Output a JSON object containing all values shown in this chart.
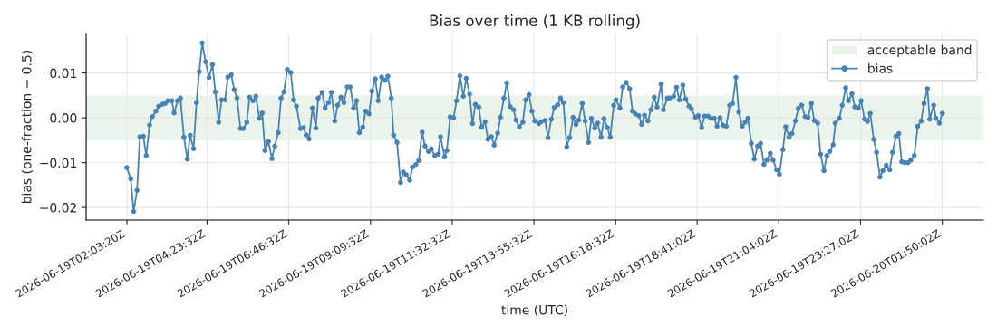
{
  "chart_data": {
    "type": "line",
    "title": "Bias over time (1 KB rolling)",
    "xlabel": "time (UTC)",
    "ylabel": "bias (one-fraction − 0.5)",
    "xlim": [
      "2026-06-19T00:52",
      "2026-06-20T03:02"
    ],
    "ylim": [
      -0.0228,
      0.0188
    ],
    "xticks": [
      {
        "value": "2026-06-19T02:03:20",
        "label": "2026-06-19T02:03:20Z"
      },
      {
        "value": "2026-06-19T04:23:32",
        "label": "2026-06-19T04:23:32Z"
      },
      {
        "value": "2026-06-19T06:46:32",
        "label": "2026-06-19T06:46:32Z"
      },
      {
        "value": "2026-06-19T09:09:32",
        "label": "2026-06-19T09:09:32Z"
      },
      {
        "value": "2026-06-19T11:32:32",
        "label": "2026-06-19T11:32:32Z"
      },
      {
        "value": "2026-06-19T13:55:32",
        "label": "2026-06-19T13:55:32Z"
      },
      {
        "value": "2026-06-19T16:18:32",
        "label": "2026-06-19T16:18:32Z"
      },
      {
        "value": "2026-06-19T18:41:02",
        "label": "2026-06-19T18:41:02Z"
      },
      {
        "value": "2026-06-19T21:04:02",
        "label": "2026-06-19T21:04:02Z"
      },
      {
        "value": "2026-06-19T23:27:02",
        "label": "2026-06-19T23:27:02Z"
      },
      {
        "value": "2026-06-20T01:50:02",
        "label": "2026-06-20T01:50:02Z"
      }
    ],
    "yticks": [
      {
        "value": -0.02,
        "label": "−0.02"
      },
      {
        "value": -0.01,
        "label": "−0.01"
      },
      {
        "value": 0.0,
        "label": "0.00"
      },
      {
        "value": 0.01,
        "label": "0.01"
      }
    ],
    "grid": true,
    "legend": "top right",
    "marker": "circle",
    "line_style": "solid",
    "bands": [
      {
        "axis": "y",
        "from": -0.005,
        "to": 0.005,
        "label": "acceptable band",
        "color": "#ebf4eb"
      }
    ],
    "series": [
      {
        "name": "bias",
        "color": "#4682b4",
        "x": [
          "2026-06-19T02:03",
          "2026-06-19T02:10",
          "2026-06-19T02:15",
          "2026-06-19T02:21",
          "2026-06-19T02:26",
          "2026-06-19T02:32",
          "2026-06-19T02:37",
          "2026-06-19T02:43",
          "2026-06-19T02:48",
          "2026-06-19T02:54",
          "2026-06-19T02:59",
          "2026-06-19T03:05",
          "2026-06-19T03:10",
          "2026-06-19T03:15",
          "2026-06-19T03:22",
          "2026-06-19T03:26",
          "2026-06-19T03:32",
          "2026-06-19T03:37",
          "2026-06-19T03:43",
          "2026-06-19T03:49",
          "2026-06-19T03:54",
          "2026-06-19T04:00",
          "2026-06-19T04:05",
          "2026-06-19T04:10",
          "2026-06-19T04:15",
          "2026-06-19T04:21",
          "2026-06-19T04:27",
          "2026-06-19T04:33",
          "2026-06-19T04:38",
          "2026-06-19T04:44",
          "2026-06-19T04:49",
          "2026-06-19T04:55",
          "2026-06-19T05:00",
          "2026-06-19T05:06",
          "2026-06-19T05:11",
          "2026-06-19T05:16",
          "2026-06-19T05:22",
          "2026-06-19T05:27",
          "2026-06-19T05:33",
          "2026-06-19T05:38",
          "2026-06-19T05:44",
          "2026-06-19T05:49",
          "2026-06-19T05:55",
          "2026-06-19T06:00",
          "2026-06-19T06:05",
          "2026-06-19T06:11",
          "2026-06-19T06:17",
          "2026-06-19T06:22",
          "2026-06-19T06:28",
          "2026-06-19T06:33",
          "2026-06-19T06:38",
          "2026-06-19T06:44",
          "2026-06-19T06:50",
          "2026-06-19T06:55",
          "2026-06-19T07:00",
          "2026-06-19T07:07",
          "2026-06-19T07:12",
          "2026-06-19T07:17",
          "2026-06-19T07:22",
          "2026-06-19T07:28",
          "2026-06-19T07:34",
          "2026-06-19T07:38",
          "2026-06-19T07:45",
          "2026-06-19T07:50",
          "2026-06-19T07:56",
          "2026-06-19T08:01",
          "2026-06-19T08:07",
          "2026-06-19T08:12",
          "2026-06-19T08:18",
          "2026-06-19T08:23",
          "2026-06-19T08:29",
          "2026-06-19T08:34",
          "2026-06-19T08:40",
          "2026-06-19T08:45",
          "2026-06-19T08:50",
          "2026-06-19T08:56",
          "2026-06-19T09:01",
          "2026-06-19T09:07",
          "2026-06-19T09:12",
          "2026-06-19T09:18",
          "2026-06-19T09:23",
          "2026-06-19T09:29",
          "2026-06-19T09:35",
          "2026-06-19T09:40",
          "2026-06-19T09:46",
          "2026-06-19T09:50",
          "2026-06-19T09:56",
          "2026-06-19T10:02",
          "2026-06-19T10:07",
          "2026-06-19T10:12",
          "2026-06-19T10:18",
          "2026-06-19T10:23",
          "2026-06-19T10:29",
          "2026-06-19T10:34",
          "2026-06-19T10:40",
          "2026-06-19T10:45",
          "2026-06-19T10:51",
          "2026-06-19T10:56",
          "2026-06-19T11:02",
          "2026-06-19T11:08",
          "2026-06-19T11:12",
          "2026-06-19T11:19",
          "2026-06-19T11:23",
          "2026-06-19T11:29",
          "2026-06-19T11:35",
          "2026-06-19T11:40",
          "2026-06-19T11:46",
          "2026-06-19T11:52",
          "2026-06-19T11:57",
          "2026-06-19T12:03",
          "2026-06-19T12:08",
          "2026-06-19T12:13",
          "2026-06-19T12:19",
          "2026-06-19T12:24",
          "2026-06-19T12:30",
          "2026-06-19T12:35",
          "2026-06-19T12:41",
          "2026-06-19T12:46",
          "2026-06-19T12:52",
          "2026-06-19T12:57",
          "2026-06-19T13:03",
          "2026-06-19T13:08",
          "2026-06-19T13:14",
          "2026-06-19T13:20",
          "2026-06-19T13:24",
          "2026-06-19T13:30",
          "2026-06-19T13:36",
          "2026-06-19T13:41",
          "2026-06-19T13:47",
          "2026-06-19T13:52",
          "2026-06-19T13:57",
          "2026-06-19T14:04",
          "2026-06-19T14:08",
          "2026-06-19T14:15",
          "2026-06-19T14:20",
          "2026-06-19T14:26",
          "2026-06-19T14:31",
          "2026-06-19T14:37",
          "2026-06-19T14:42",
          "2026-06-19T14:47",
          "2026-06-19T14:53",
          "2026-06-19T14:58",
          "2026-06-19T15:04",
          "2026-06-19T15:09",
          "2026-06-19T15:14",
          "2026-06-19T15:20",
          "2026-06-19T15:25",
          "2026-06-19T15:31",
          "2026-06-19T15:36",
          "2026-06-19T15:42",
          "2026-06-19T15:47",
          "2026-06-19T15:53",
          "2026-06-19T15:58",
          "2026-06-19T16:04",
          "2026-06-19T16:09",
          "2026-06-19T16:15",
          "2026-06-19T16:19",
          "2026-06-19T16:26",
          "2026-06-19T16:31",
          "2026-06-19T16:37",
          "2026-06-19T16:43",
          "2026-06-19T16:48",
          "2026-06-19T16:53",
          "2026-06-19T16:59",
          "2026-06-19T17:04",
          "2026-06-19T17:09",
          "2026-06-19T17:15",
          "2026-06-19T17:20",
          "2026-06-19T17:26",
          "2026-06-19T17:31",
          "2026-06-19T17:38",
          "2026-06-19T17:42",
          "2026-06-19T17:49",
          "2026-06-19T17:53",
          "2026-06-19T18:00",
          "2026-06-19T18:05",
          "2026-06-19T18:10",
          "2026-06-19T18:16",
          "2026-06-19T18:21",
          "2026-06-19T18:27",
          "2026-06-19T18:31",
          "2026-06-19T18:38",
          "2026-06-19T18:43",
          "2026-06-19T18:49",
          "2026-06-19T18:54",
          "2026-06-19T19:00",
          "2026-06-19T19:05",
          "2026-06-19T19:11",
          "2026-06-19T19:16",
          "2026-06-19T19:21",
          "2026-06-19T19:27",
          "2026-06-19T19:32",
          "2026-06-19T19:38",
          "2026-06-19T19:43",
          "2026-06-19T19:49",
          "2026-06-19T19:54",
          "2026-06-19T20:00",
          "2026-06-19T20:05",
          "2026-06-19T20:10",
          "2026-06-19T20:16",
          "2026-06-19T20:21",
          "2026-06-19T20:27",
          "2026-06-19T20:32",
          "2026-06-19T20:38",
          "2026-06-19T20:43",
          "2026-06-19T20:49",
          "2026-06-19T20:54",
          "2026-06-19T21:00",
          "2026-06-19T21:05",
          "2026-06-19T21:11",
          "2026-06-19T21:16",
          "2026-06-19T21:22",
          "2026-06-19T21:27",
          "2026-06-19T21:33",
          "2026-06-19T21:38",
          "2026-06-19T21:44",
          "2026-06-19T21:50",
          "2026-06-19T21:55",
          "2026-06-19T22:01",
          "2026-06-19T22:06",
          "2026-06-19T22:12",
          "2026-06-19T22:17",
          "2026-06-19T22:23",
          "2026-06-19T22:28",
          "2026-06-19T22:33",
          "2026-06-19T22:39",
          "2026-06-19T22:43",
          "2026-06-19T22:50",
          "2026-06-19T22:55",
          "2026-06-19T23:01",
          "2026-06-19T23:06",
          "2026-06-19T23:12",
          "2026-06-19T23:17",
          "2026-06-19T23:23",
          "2026-06-19T23:28",
          "2026-06-19T23:34",
          "2026-06-19T23:39",
          "2026-06-19T23:44",
          "2026-06-19T23:50",
          "2026-06-19T23:55",
          "2026-06-20T00:01",
          "2026-06-20T00:06",
          "2026-06-20T00:12",
          "2026-06-20T00:18",
          "2026-06-20T00:23",
          "2026-06-20T00:29",
          "2026-06-20T00:34",
          "2026-06-20T00:39",
          "2026-06-20T00:44",
          "2026-06-20T00:50",
          "2026-06-20T00:55",
          "2026-06-20T01:01",
          "2026-06-20T01:07",
          "2026-06-20T01:13",
          "2026-06-20T01:18",
          "2026-06-20T01:24",
          "2026-06-20T01:28",
          "2026-06-20T01:35",
          "2026-06-20T01:39",
          "2026-06-20T01:45",
          "2026-06-20T01:50"
        ],
        "values": [
          -0.0111,
          -0.0136,
          -0.0209,
          -0.0162,
          -0.0042,
          -0.0041,
          -0.0084,
          -0.0016,
          0.0003,
          0.0015,
          0.0026,
          0.003,
          0.0032,
          0.0038,
          0.0038,
          0.0011,
          0.0038,
          0.0044,
          -0.0043,
          -0.0092,
          -0.0039,
          -0.0069,
          0.0034,
          0.0103,
          0.0167,
          0.0125,
          0.009,
          0.0119,
          0.0058,
          -0.001,
          0.004,
          0.004,
          0.0091,
          0.0096,
          0.0063,
          0.0044,
          -0.0024,
          -0.0024,
          -0.001,
          0.0046,
          0.0038,
          0.0048,
          -0.0001,
          0.0011,
          -0.0073,
          -0.0053,
          -0.0091,
          -0.0063,
          -0.0033,
          0.0044,
          0.0058,
          0.0108,
          0.0101,
          0.004,
          0.0026,
          -0.0024,
          -0.0022,
          -0.0038,
          -0.0047,
          0.0022,
          -0.0023,
          0.0044,
          0.0057,
          0.0022,
          0.0034,
          0.0057,
          -0.0007,
          0.0028,
          0.0046,
          0.0034,
          0.0069,
          0.0069,
          0.0022,
          0.0038,
          -0.0033,
          -0.0021,
          0.0015,
          0.0009,
          0.006,
          0.0087,
          0.0038,
          0.0091,
          0.0084,
          0.0093,
          0.0044,
          -0.0039,
          -0.0055,
          -0.0144,
          -0.0121,
          -0.0127,
          -0.0139,
          -0.011,
          -0.0104,
          -0.0095,
          -0.0032,
          -0.0063,
          -0.0075,
          -0.0069,
          -0.0084,
          -0.0081,
          -0.0042,
          -0.0087,
          -0.0073,
          0.0002,
          0.0,
          0.0038,
          0.0094,
          0.0048,
          0.0088,
          0.0053,
          -0.0013,
          0.003,
          0.0024,
          -0.0021,
          -0.0009,
          -0.0048,
          -0.0042,
          -0.0061,
          -0.0034,
          0.0001,
          0.0044,
          0.0078,
          0.0025,
          0.0018,
          -0.0005,
          -0.002,
          -0.001,
          0.004,
          0.0052,
          0.0015,
          -0.0007,
          -0.0013,
          -0.0009,
          -0.0006,
          -0.0044,
          -0.0003,
          0.0023,
          0.0029,
          0.0044,
          0.0034,
          -0.0065,
          -0.0044,
          0.0001,
          -0.0015,
          -0.0005,
          0.0032,
          -0.0007,
          -0.0055,
          -0.0001,
          -0.0023,
          -0.0012,
          -0.0043,
          -0.0002,
          -0.0022,
          -0.0043,
          0.0028,
          0.004,
          0.0022,
          0.0069,
          0.0079,
          0.0065,
          0.0015,
          0.0009,
          0.0005,
          -0.0015,
          0.0006,
          -0.0007,
          0.0018,
          0.0046,
          0.0024,
          0.0075,
          0.0018,
          0.0044,
          0.0044,
          0.0048,
          0.0068,
          0.004,
          0.0073,
          0.0042,
          0.0026,
          0.002,
          0.0001,
          0.0005,
          -0.0022,
          0.0004,
          0.0004,
          -0.0001,
          -0.0001,
          -0.0019,
          0.0,
          -0.0017,
          -0.0019,
          0.0028,
          0.0032,
          0.009,
          0.0013,
          -0.0019,
          -0.001,
          -0.0001,
          -0.0057,
          -0.0092,
          -0.0063,
          -0.0057,
          -0.0104,
          -0.0094,
          -0.0079,
          -0.0094,
          -0.0116,
          -0.0126,
          -0.0071,
          -0.002,
          -0.0043,
          -0.0035,
          -0.0007,
          0.0021,
          0.0028,
          0.0003,
          0.0001,
          0.0032,
          -0.0006,
          -0.0012,
          -0.0081,
          -0.0118,
          -0.0084,
          -0.0075,
          -0.006,
          -0.0012,
          -0.0001,
          0.0028,
          0.0067,
          0.0038,
          0.0054,
          0.0024,
          0.0022,
          0.0038,
          -0.0003,
          -0.0008,
          0.001,
          -0.0048,
          -0.0077,
          -0.0132,
          -0.0118,
          -0.0106,
          -0.0116,
          -0.0077,
          -0.0041,
          -0.0035,
          -0.0098,
          -0.01,
          -0.01,
          -0.0094,
          -0.0084,
          -0.0019,
          -0.0007,
          0.0032,
          0.0065,
          -0.0003,
          0.0028,
          -0.0001,
          -0.0012,
          0.001
        ]
      }
    ]
  }
}
